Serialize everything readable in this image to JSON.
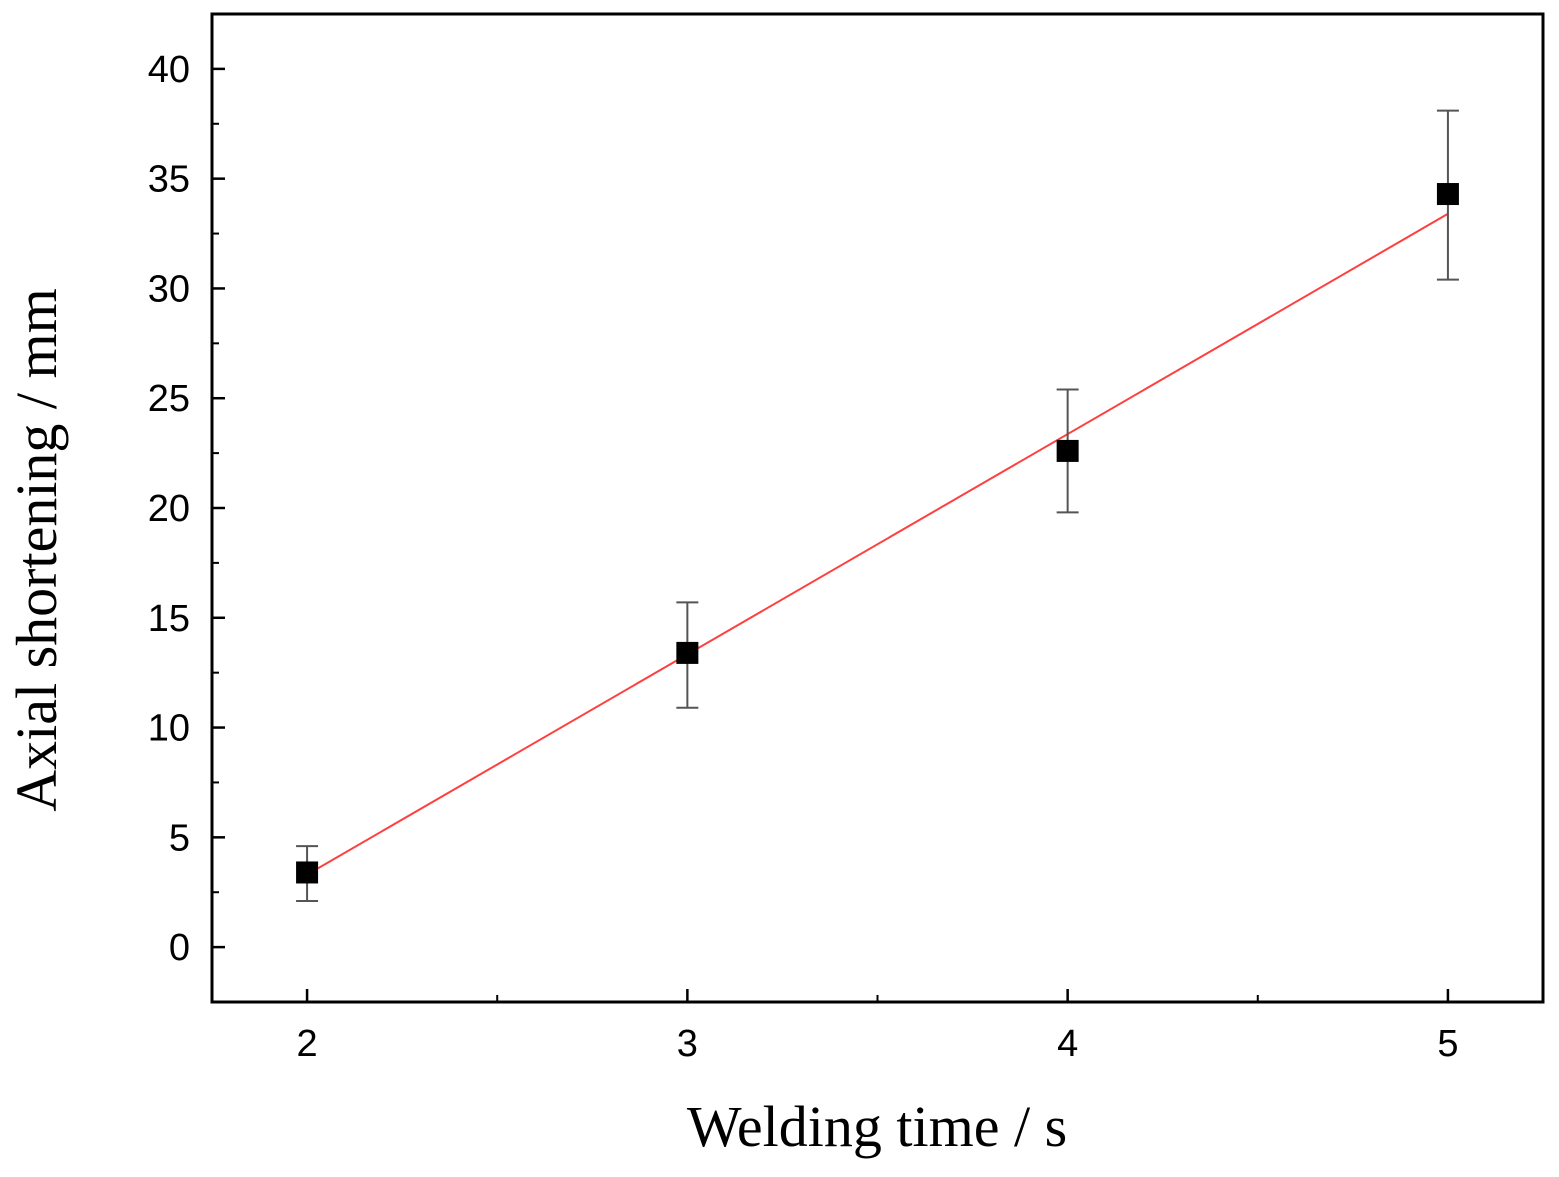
{
  "chart_data": {
    "type": "scatter",
    "title": "",
    "xlabel": "Welding time / s",
    "ylabel": "Axial shortening / mm",
    "xlim": [
      1.75,
      5.25
    ],
    "ylim": [
      -2.5,
      42.5
    ],
    "xticks": [
      2,
      3,
      4,
      5
    ],
    "xtick_labels": [
      "2",
      "3",
      "4",
      "5"
    ],
    "x_minor_ticks": [
      2.5,
      3.5,
      4.5
    ],
    "yticks": [
      0,
      5,
      10,
      15,
      20,
      25,
      30,
      35,
      40
    ],
    "ytick_labels": [
      "0",
      "5",
      "10",
      "15",
      "20",
      "25",
      "30",
      "35",
      "40"
    ],
    "y_minor_ticks": [
      2.5,
      7.5,
      12.5,
      17.5,
      22.5,
      27.5,
      32.5,
      37.5
    ],
    "grid": false,
    "legend": "none",
    "series": [
      {
        "marker": "square",
        "color": "#000000",
        "x": [
          2,
          3,
          4,
          5
        ],
        "y": [
          3.4,
          13.4,
          22.6,
          34.3
        ],
        "err_low": [
          2.1,
          10.9,
          19.8,
          30.4
        ],
        "err_high": [
          4.6,
          15.7,
          25.4,
          38.1
        ]
      }
    ],
    "fit_line": {
      "color": "#ff4040",
      "x": [
        2,
        5
      ],
      "y": [
        3.3,
        33.4
      ]
    }
  }
}
